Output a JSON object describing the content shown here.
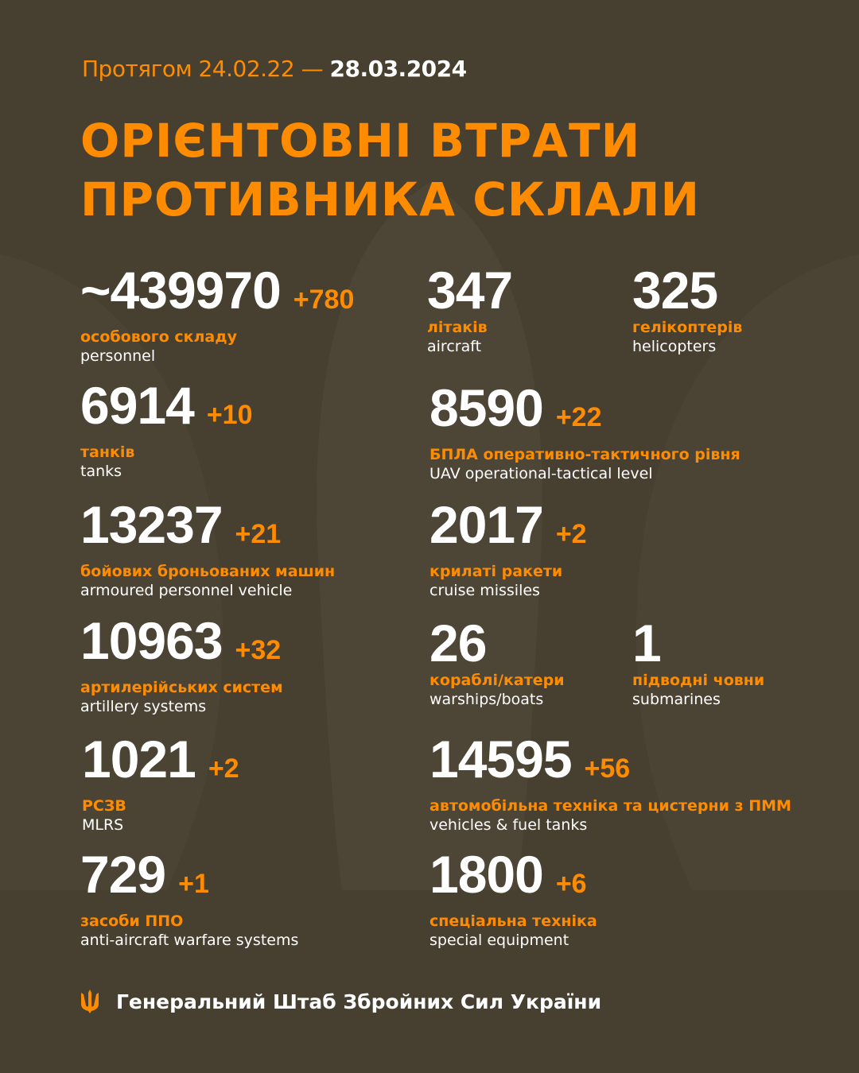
{
  "header": {
    "period_prefix": "Протягом 24.02.22 —",
    "period_end": "28.03.2024",
    "title_line1": "ОРІЄНТОВНІ ВТРАТИ",
    "title_line2": "ПРОТИВНИКА СКЛАЛИ"
  },
  "colors": {
    "background": "#474030",
    "accent": "#ff8c00",
    "text": "#ffffff"
  },
  "items": [
    {
      "value": "~439970",
      "delta": "+780",
      "uk": "особового складу",
      "en": "personnel"
    },
    {
      "value": "347",
      "delta": "",
      "uk": "літаків",
      "en": "aircraft"
    },
    {
      "value": "325",
      "delta": "",
      "uk": "гелікоптерів",
      "en": "helicopters"
    },
    {
      "value": "6914",
      "delta": "+10",
      "uk": "танків",
      "en": "tanks"
    },
    {
      "value": "8590",
      "delta": "+22",
      "uk": "БПЛА оперативно-тактичного рівня",
      "en": "UAV operational-tactical level"
    },
    {
      "value": "13237",
      "delta": "+21",
      "uk": "бойових броньованих машин",
      "en": "armoured personnel vehicle"
    },
    {
      "value": "2017",
      "delta": "+2",
      "uk": "крилаті ракети",
      "en": "cruise missiles"
    },
    {
      "value": "10963",
      "delta": "+32",
      "uk": "артилерійських систем",
      "en": "artillery systems"
    },
    {
      "value": "26",
      "delta": "",
      "uk": "кораблі/катери",
      "en": "warships/boats"
    },
    {
      "value": "1",
      "delta": "",
      "uk": "підводні човни",
      "en": "submarines"
    },
    {
      "value": "1021",
      "delta": "+2",
      "uk": "РСЗВ",
      "en": "MLRS"
    },
    {
      "value": "14595",
      "delta": "+56",
      "uk": "автомобільна техніка та цистерни з ПММ",
      "en": "vehicles & fuel tanks"
    },
    {
      "value": "729",
      "delta": "+1",
      "uk": "засоби ППО",
      "en": "anti-aircraft warfare systems"
    },
    {
      "value": "1800",
      "delta": "+6",
      "uk": "спеціальна техніка",
      "en": "special equipment"
    }
  ],
  "footer": {
    "icon": "trident-icon",
    "text": "Генеральний Штаб Збройних Сил України"
  }
}
